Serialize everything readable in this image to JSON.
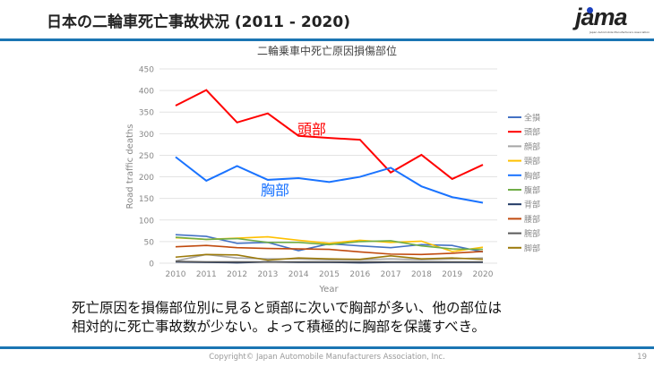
{
  "header": {
    "title": "日本の二輪車死亡事故状況 (2011 - 2020)"
  },
  "logo": {
    "text": "jama",
    "subtitle": "Japan Automobile Manufacturers Association"
  },
  "body": {
    "line1": "死亡原因を損傷部位別に見ると頭部に次いで胸部が多い、他の部位は",
    "line2": "相対的に死亡事故数が少ない。よって積極的に胸部を保護すべき。"
  },
  "footer": {
    "copyright": "Copyright© Japan Automobile Manufacturers Association, Inc.",
    "page": "19"
  },
  "chart_data": {
    "type": "line",
    "title": "二輪乗車中死亡原因損傷部位",
    "xlabel": "Year",
    "ylabel": "Road traffic deaths",
    "ylim": [
      0,
      450
    ],
    "yticks": [
      0,
      50,
      100,
      150,
      200,
      250,
      300,
      350,
      400,
      450
    ],
    "grid": true,
    "legend": "right",
    "x": [
      2010,
      2011,
      2012,
      2013,
      2014,
      2015,
      2016,
      2017,
      2018,
      2019,
      2020
    ],
    "annotations": [
      {
        "text": "頭部",
        "color": "#ff0000"
      },
      {
        "text": "胸部",
        "color": "#1a73ff"
      }
    ],
    "series": [
      {
        "name": "全損",
        "color": "#4472c4",
        "values": [
          66,
          62,
          46,
          48,
          29,
          45,
          40,
          36,
          43,
          41,
          26
        ]
      },
      {
        "name": "頭部",
        "color": "#ff0000",
        "values": [
          365,
          401,
          326,
          347,
          295,
          290,
          286,
          210,
          251,
          195,
          228
        ]
      },
      {
        "name": "顔部",
        "color": "#a5a5a5",
        "values": [
          5,
          20,
          12,
          10,
          10,
          8,
          8,
          10,
          8,
          10,
          12
        ]
      },
      {
        "name": "頸部",
        "color": "#ffc000",
        "values": [
          59,
          55,
          58,
          61,
          53,
          46,
          53,
          48,
          51,
          27,
          37
        ]
      },
      {
        "name": "胸部",
        "color": "#1a73ff",
        "values": [
          246,
          191,
          225,
          193,
          197,
          188,
          200,
          221,
          178,
          153,
          140
        ]
      },
      {
        "name": "腹部",
        "color": "#70ad47",
        "values": [
          60,
          55,
          57,
          48,
          48,
          43,
          50,
          52,
          40,
          33,
          32
        ]
      },
      {
        "name": "背部",
        "color": "#203864",
        "values": [
          3,
          2,
          1,
          3,
          2,
          2,
          1,
          2,
          2,
          2,
          2
        ]
      },
      {
        "name": "腰部",
        "color": "#c04a0e",
        "values": [
          38,
          41,
          36,
          34,
          33,
          32,
          26,
          21,
          20,
          23,
          27
        ]
      },
      {
        "name": "腕部",
        "color": "#595959",
        "values": [
          4,
          3,
          3,
          3,
          3,
          3,
          3,
          3,
          3,
          3,
          3
        ]
      },
      {
        "name": "脚部",
        "color": "#9c7a0a",
        "values": [
          14,
          20,
          19,
          7,
          12,
          10,
          9,
          17,
          10,
          12,
          9
        ]
      }
    ]
  }
}
